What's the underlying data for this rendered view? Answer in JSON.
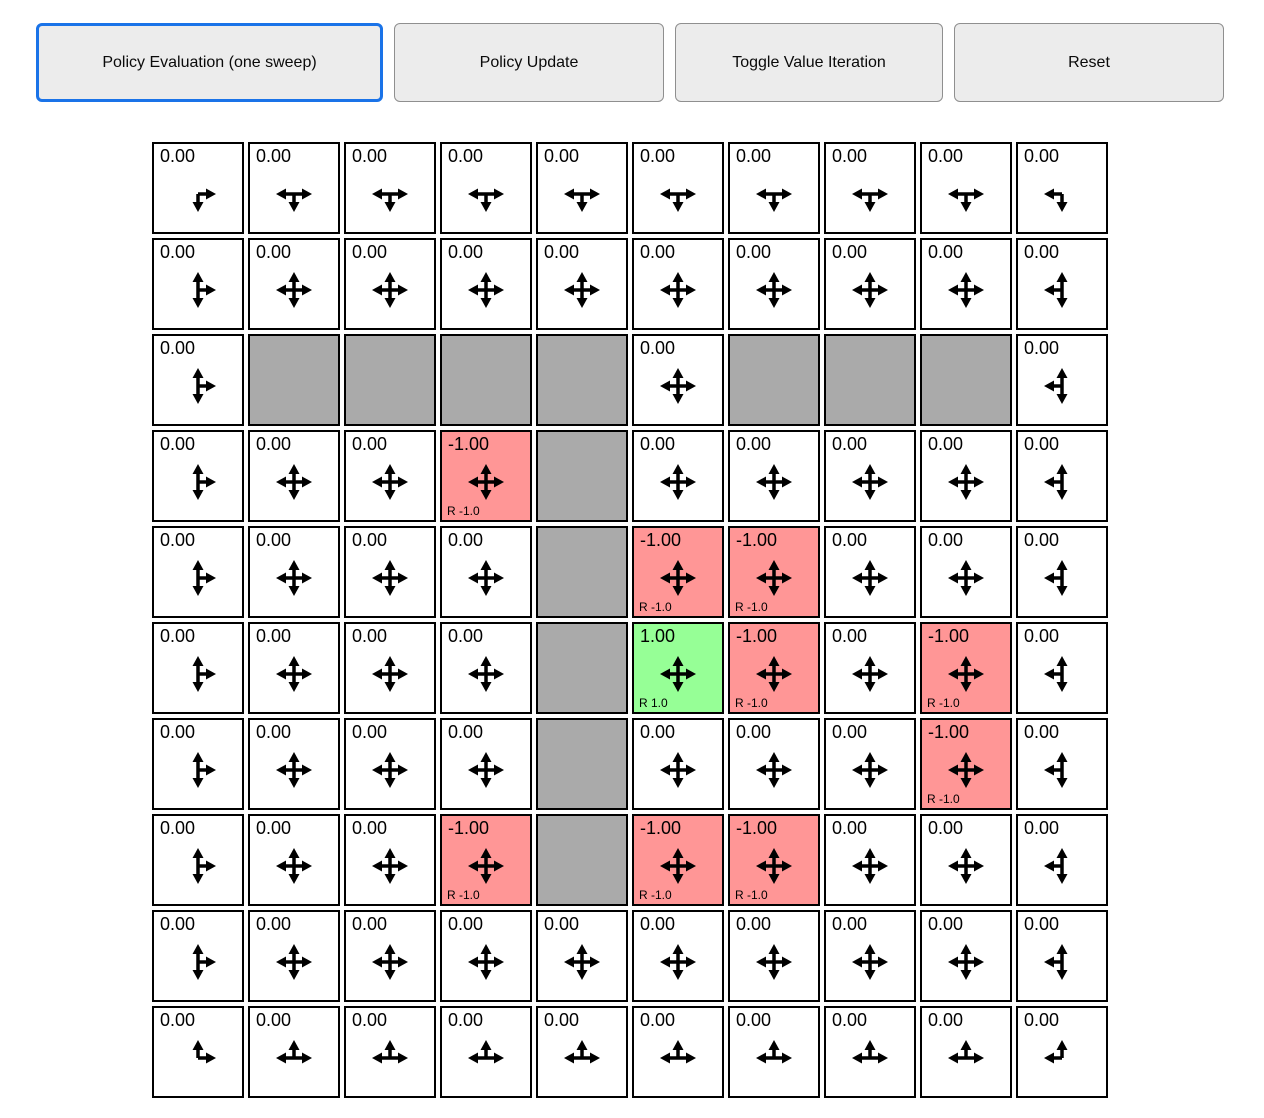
{
  "toolbar": {
    "policy_eval_label": "Policy Evaluation (one sweep)",
    "policy_update_label": "Policy Update",
    "toggle_vi_label": "Toggle Value Iteration",
    "reset_label": "Reset",
    "focused_button": "policy_eval"
  },
  "colors": {
    "wall": "#aaaaaa",
    "reward_negative": "#ff9696",
    "reward_positive": "#96ff96",
    "focus_ring": "#1a73e8",
    "button_bg": "#ececec",
    "grid_border": "#000000"
  },
  "grid": {
    "rows": 10,
    "cols": 10,
    "cells": [
      [
        {
          "value": "0.00",
          "type": "normal",
          "arrows": "dr"
        },
        {
          "value": "0.00",
          "type": "normal",
          "arrows": "dlr"
        },
        {
          "value": "0.00",
          "type": "normal",
          "arrows": "dlr"
        },
        {
          "value": "0.00",
          "type": "normal",
          "arrows": "dlr"
        },
        {
          "value": "0.00",
          "type": "normal",
          "arrows": "dlr"
        },
        {
          "value": "0.00",
          "type": "normal",
          "arrows": "dlr"
        },
        {
          "value": "0.00",
          "type": "normal",
          "arrows": "dlr"
        },
        {
          "value": "0.00",
          "type": "normal",
          "arrows": "dlr"
        },
        {
          "value": "0.00",
          "type": "normal",
          "arrows": "dlr"
        },
        {
          "value": "0.00",
          "type": "normal",
          "arrows": "dl"
        }
      ],
      [
        {
          "value": "0.00",
          "type": "normal",
          "arrows": "udr"
        },
        {
          "value": "0.00",
          "type": "normal",
          "arrows": "udlr"
        },
        {
          "value": "0.00",
          "type": "normal",
          "arrows": "udlr"
        },
        {
          "value": "0.00",
          "type": "normal",
          "arrows": "udlr"
        },
        {
          "value": "0.00",
          "type": "normal",
          "arrows": "udlr"
        },
        {
          "value": "0.00",
          "type": "normal",
          "arrows": "udlr"
        },
        {
          "value": "0.00",
          "type": "normal",
          "arrows": "udlr"
        },
        {
          "value": "0.00",
          "type": "normal",
          "arrows": "udlr"
        },
        {
          "value": "0.00",
          "type": "normal",
          "arrows": "udlr"
        },
        {
          "value": "0.00",
          "type": "normal",
          "arrows": "udl"
        }
      ],
      [
        {
          "value": "0.00",
          "type": "normal",
          "arrows": "udr"
        },
        {
          "type": "wall"
        },
        {
          "type": "wall"
        },
        {
          "type": "wall"
        },
        {
          "type": "wall"
        },
        {
          "value": "0.00",
          "type": "normal",
          "arrows": "udlr"
        },
        {
          "type": "wall"
        },
        {
          "type": "wall"
        },
        {
          "type": "wall"
        },
        {
          "value": "0.00",
          "type": "normal",
          "arrows": "udl"
        }
      ],
      [
        {
          "value": "0.00",
          "type": "normal",
          "arrows": "udr"
        },
        {
          "value": "0.00",
          "type": "normal",
          "arrows": "udlr"
        },
        {
          "value": "0.00",
          "type": "normal",
          "arrows": "udlr"
        },
        {
          "value": "-1.00",
          "type": "penalty",
          "arrows": "udlr",
          "reward": "R -1.0"
        },
        {
          "type": "wall"
        },
        {
          "value": "0.00",
          "type": "normal",
          "arrows": "udlr"
        },
        {
          "value": "0.00",
          "type": "normal",
          "arrows": "udlr"
        },
        {
          "value": "0.00",
          "type": "normal",
          "arrows": "udlr"
        },
        {
          "value": "0.00",
          "type": "normal",
          "arrows": "udlr"
        },
        {
          "value": "0.00",
          "type": "normal",
          "arrows": "udl"
        }
      ],
      [
        {
          "value": "0.00",
          "type": "normal",
          "arrows": "udr"
        },
        {
          "value": "0.00",
          "type": "normal",
          "arrows": "udlr"
        },
        {
          "value": "0.00",
          "type": "normal",
          "arrows": "udlr"
        },
        {
          "value": "0.00",
          "type": "normal",
          "arrows": "udlr"
        },
        {
          "type": "wall"
        },
        {
          "value": "-1.00",
          "type": "penalty",
          "arrows": "udlr",
          "reward": "R -1.0"
        },
        {
          "value": "-1.00",
          "type": "penalty",
          "arrows": "udlr",
          "reward": "R -1.0"
        },
        {
          "value": "0.00",
          "type": "normal",
          "arrows": "udlr"
        },
        {
          "value": "0.00",
          "type": "normal",
          "arrows": "udlr"
        },
        {
          "value": "0.00",
          "type": "normal",
          "arrows": "udl"
        }
      ],
      [
        {
          "value": "0.00",
          "type": "normal",
          "arrows": "udr"
        },
        {
          "value": "0.00",
          "type": "normal",
          "arrows": "udlr"
        },
        {
          "value": "0.00",
          "type": "normal",
          "arrows": "udlr"
        },
        {
          "value": "0.00",
          "type": "normal",
          "arrows": "udlr"
        },
        {
          "type": "wall"
        },
        {
          "value": "1.00",
          "type": "goal",
          "arrows": "udlr",
          "reward": "R 1.0"
        },
        {
          "value": "-1.00",
          "type": "penalty",
          "arrows": "udlr",
          "reward": "R -1.0"
        },
        {
          "value": "0.00",
          "type": "normal",
          "arrows": "udlr"
        },
        {
          "value": "-1.00",
          "type": "penalty",
          "arrows": "udlr",
          "reward": "R -1.0"
        },
        {
          "value": "0.00",
          "type": "normal",
          "arrows": "udl"
        }
      ],
      [
        {
          "value": "0.00",
          "type": "normal",
          "arrows": "udr"
        },
        {
          "value": "0.00",
          "type": "normal",
          "arrows": "udlr"
        },
        {
          "value": "0.00",
          "type": "normal",
          "arrows": "udlr"
        },
        {
          "value": "0.00",
          "type": "normal",
          "arrows": "udlr"
        },
        {
          "type": "wall"
        },
        {
          "value": "0.00",
          "type": "normal",
          "arrows": "udlr"
        },
        {
          "value": "0.00",
          "type": "normal",
          "arrows": "udlr"
        },
        {
          "value": "0.00",
          "type": "normal",
          "arrows": "udlr"
        },
        {
          "value": "-1.00",
          "type": "penalty",
          "arrows": "udlr",
          "reward": "R -1.0"
        },
        {
          "value": "0.00",
          "type": "normal",
          "arrows": "udl"
        }
      ],
      [
        {
          "value": "0.00",
          "type": "normal",
          "arrows": "udr"
        },
        {
          "value": "0.00",
          "type": "normal",
          "arrows": "udlr"
        },
        {
          "value": "0.00",
          "type": "normal",
          "arrows": "udlr"
        },
        {
          "value": "-1.00",
          "type": "penalty",
          "arrows": "udlr",
          "reward": "R -1.0"
        },
        {
          "type": "wall"
        },
        {
          "value": "-1.00",
          "type": "penalty",
          "arrows": "udlr",
          "reward": "R -1.0"
        },
        {
          "value": "-1.00",
          "type": "penalty",
          "arrows": "udlr",
          "reward": "R -1.0"
        },
        {
          "value": "0.00",
          "type": "normal",
          "arrows": "udlr"
        },
        {
          "value": "0.00",
          "type": "normal",
          "arrows": "udlr"
        },
        {
          "value": "0.00",
          "type": "normal",
          "arrows": "udl"
        }
      ],
      [
        {
          "value": "0.00",
          "type": "normal",
          "arrows": "udr"
        },
        {
          "value": "0.00",
          "type": "normal",
          "arrows": "udlr"
        },
        {
          "value": "0.00",
          "type": "normal",
          "arrows": "udlr"
        },
        {
          "value": "0.00",
          "type": "normal",
          "arrows": "udlr"
        },
        {
          "value": "0.00",
          "type": "normal",
          "arrows": "udlr"
        },
        {
          "value": "0.00",
          "type": "normal",
          "arrows": "udlr"
        },
        {
          "value": "0.00",
          "type": "normal",
          "arrows": "udlr"
        },
        {
          "value": "0.00",
          "type": "normal",
          "arrows": "udlr"
        },
        {
          "value": "0.00",
          "type": "normal",
          "arrows": "udlr"
        },
        {
          "value": "0.00",
          "type": "normal",
          "arrows": "udl"
        }
      ],
      [
        {
          "value": "0.00",
          "type": "normal",
          "arrows": "ur"
        },
        {
          "value": "0.00",
          "type": "normal",
          "arrows": "ulr"
        },
        {
          "value": "0.00",
          "type": "normal",
          "arrows": "ulr"
        },
        {
          "value": "0.00",
          "type": "normal",
          "arrows": "ulr"
        },
        {
          "value": "0.00",
          "type": "normal",
          "arrows": "ulr"
        },
        {
          "value": "0.00",
          "type": "normal",
          "arrows": "ulr"
        },
        {
          "value": "0.00",
          "type": "normal",
          "arrows": "ulr"
        },
        {
          "value": "0.00",
          "type": "normal",
          "arrows": "ulr"
        },
        {
          "value": "0.00",
          "type": "normal",
          "arrows": "ulr"
        },
        {
          "value": "0.00",
          "type": "normal",
          "arrows": "ul"
        }
      ]
    ]
  }
}
